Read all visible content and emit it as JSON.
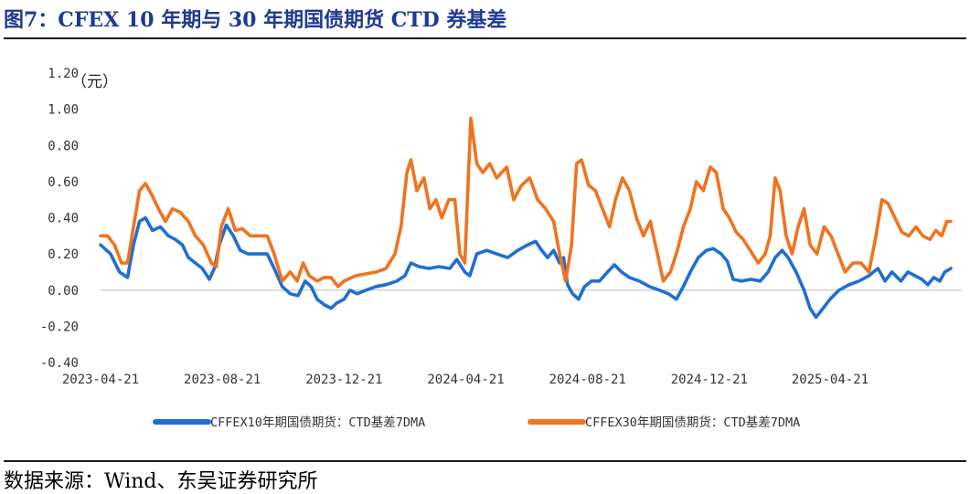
{
  "figure": {
    "title": "图7：CFEX 10 年期与 30 年期国债期货 CTD 券基差",
    "source": "数据来源：Wind、东吴证券研究所"
  },
  "chart_data": {
    "type": "line",
    "unit_label": "（元）",
    "ylim": [
      -0.4,
      1.2
    ],
    "yticks": [
      "1.20",
      "1.00",
      "0.80",
      "0.60",
      "0.40",
      "0.20",
      "0.00",
      "-0.20",
      "-0.40"
    ],
    "xlim": [
      "2023-04-21",
      "2025-08-31"
    ],
    "xtick_labels": [
      "2023-04-21",
      "2023-08-21",
      "2023-12-21",
      "2024-04-21",
      "2024-08-21",
      "2024-12-21",
      "2025-04-21"
    ],
    "grid": false,
    "legend_position": "bottom",
    "series": [
      {
        "name": "CFFEX10年期国债期货：CTD基差7DMA",
        "color": "#1f6fd0",
        "points": [
          [
            "2023-04-21",
            0.25
          ],
          [
            "2023-05-01",
            0.2
          ],
          [
            "2023-05-10",
            0.1
          ],
          [
            "2023-05-18",
            0.07
          ],
          [
            "2023-05-24",
            0.25
          ],
          [
            "2023-05-30",
            0.38
          ],
          [
            "2023-06-05",
            0.4
          ],
          [
            "2023-06-12",
            0.33
          ],
          [
            "2023-06-20",
            0.35
          ],
          [
            "2023-06-28",
            0.3
          ],
          [
            "2023-07-05",
            0.28
          ],
          [
            "2023-07-12",
            0.25
          ],
          [
            "2023-07-18",
            0.18
          ],
          [
            "2023-07-25",
            0.15
          ],
          [
            "2023-08-01",
            0.12
          ],
          [
            "2023-08-08",
            0.06
          ],
          [
            "2023-08-13",
            0.12
          ],
          [
            "2023-08-18",
            0.25
          ],
          [
            "2023-08-25",
            0.36
          ],
          [
            "2023-09-01",
            0.3
          ],
          [
            "2023-09-08",
            0.22
          ],
          [
            "2023-09-16",
            0.2
          ],
          [
            "2023-09-25",
            0.2
          ],
          [
            "2023-10-05",
            0.2
          ],
          [
            "2023-10-12",
            0.12
          ],
          [
            "2023-10-20",
            0.02
          ],
          [
            "2023-10-28",
            -0.02
          ],
          [
            "2023-11-05",
            -0.03
          ],
          [
            "2023-11-12",
            0.05
          ],
          [
            "2023-11-18",
            0.02
          ],
          [
            "2023-11-24",
            -0.05
          ],
          [
            "2023-12-01",
            -0.08
          ],
          [
            "2023-12-08",
            -0.1
          ],
          [
            "2023-12-14",
            -0.07
          ],
          [
            "2023-12-21",
            -0.05
          ],
          [
            "2023-12-27",
            0.0
          ],
          [
            "2024-01-03",
            -0.02
          ],
          [
            "2024-01-12",
            0.0
          ],
          [
            "2024-01-22",
            0.02
          ],
          [
            "2024-02-01",
            0.03
          ],
          [
            "2024-02-12",
            0.05
          ],
          [
            "2024-02-20",
            0.08
          ],
          [
            "2024-02-26",
            0.15
          ],
          [
            "2024-03-05",
            0.13
          ],
          [
            "2024-03-15",
            0.12
          ],
          [
            "2024-03-25",
            0.13
          ],
          [
            "2024-04-05",
            0.12
          ],
          [
            "2024-04-12",
            0.17
          ],
          [
            "2024-04-20",
            0.1
          ],
          [
            "2024-04-25",
            0.08
          ],
          [
            "2024-05-02",
            0.2
          ],
          [
            "2024-05-12",
            0.22
          ],
          [
            "2024-05-22",
            0.2
          ],
          [
            "2024-06-02",
            0.18
          ],
          [
            "2024-06-12",
            0.22
          ],
          [
            "2024-06-22",
            0.25
          ],
          [
            "2024-06-30",
            0.27
          ],
          [
            "2024-07-06",
            0.22
          ],
          [
            "2024-07-12",
            0.18
          ],
          [
            "2024-07-18",
            0.22
          ],
          [
            "2024-07-24",
            0.15
          ],
          [
            "2024-07-28",
            0.18
          ],
          [
            "2024-08-01",
            0.03
          ],
          [
            "2024-08-06",
            -0.02
          ],
          [
            "2024-08-12",
            -0.05
          ],
          [
            "2024-08-18",
            0.02
          ],
          [
            "2024-08-25",
            0.05
          ],
          [
            "2024-09-02",
            0.05
          ],
          [
            "2024-09-10",
            0.1
          ],
          [
            "2024-09-17",
            0.14
          ],
          [
            "2024-09-24",
            0.1
          ],
          [
            "2024-10-02",
            0.07
          ],
          [
            "2024-10-12",
            0.05
          ],
          [
            "2024-10-22",
            0.02
          ],
          [
            "2024-11-01",
            0.0
          ],
          [
            "2024-11-10",
            -0.02
          ],
          [
            "2024-11-18",
            -0.05
          ],
          [
            "2024-11-25",
            0.02
          ],
          [
            "2024-12-02",
            0.1
          ],
          [
            "2024-12-10",
            0.18
          ],
          [
            "2024-12-18",
            0.22
          ],
          [
            "2024-12-25",
            0.23
          ],
          [
            "2025-01-02",
            0.2
          ],
          [
            "2025-01-08",
            0.16
          ],
          [
            "2025-01-14",
            0.06
          ],
          [
            "2025-01-22",
            0.05
          ],
          [
            "2025-02-01",
            0.06
          ],
          [
            "2025-02-10",
            0.05
          ],
          [
            "2025-02-18",
            0.1
          ],
          [
            "2025-02-25",
            0.18
          ],
          [
            "2025-03-04",
            0.22
          ],
          [
            "2025-03-10",
            0.18
          ],
          [
            "2025-03-18",
            0.1
          ],
          [
            "2025-03-26",
            0.0
          ],
          [
            "2025-04-01",
            -0.1
          ],
          [
            "2025-04-07",
            -0.15
          ],
          [
            "2025-04-14",
            -0.1
          ],
          [
            "2025-04-21",
            -0.05
          ],
          [
            "2025-04-30",
            0.0
          ],
          [
            "2025-05-10",
            0.03
          ],
          [
            "2025-05-20",
            0.05
          ],
          [
            "2025-05-30",
            0.08
          ],
          [
            "2025-06-08",
            0.12
          ],
          [
            "2025-06-15",
            0.05
          ],
          [
            "2025-06-22",
            0.1
          ],
          [
            "2025-07-01",
            0.05
          ],
          [
            "2025-07-08",
            0.1
          ],
          [
            "2025-07-15",
            0.08
          ],
          [
            "2025-07-22",
            0.06
          ],
          [
            "2025-07-28",
            0.03
          ],
          [
            "2025-08-03",
            0.07
          ],
          [
            "2025-08-09",
            0.05
          ],
          [
            "2025-08-14",
            0.1
          ],
          [
            "2025-08-20",
            0.12
          ]
        ]
      },
      {
        "name": "CFFEX30年期国债期货：CTD基差7DMA",
        "color": "#f0731e",
        "points": [
          [
            "2023-04-21",
            0.3
          ],
          [
            "2023-04-28",
            0.3
          ],
          [
            "2023-05-05",
            0.25
          ],
          [
            "2023-05-12",
            0.15
          ],
          [
            "2023-05-18",
            0.15
          ],
          [
            "2023-05-24",
            0.35
          ],
          [
            "2023-05-30",
            0.55
          ],
          [
            "2023-06-05",
            0.59
          ],
          [
            "2023-06-12",
            0.52
          ],
          [
            "2023-06-18",
            0.45
          ],
          [
            "2023-06-25",
            0.38
          ],
          [
            "2023-07-02",
            0.45
          ],
          [
            "2023-07-10",
            0.43
          ],
          [
            "2023-07-18",
            0.38
          ],
          [
            "2023-07-25",
            0.3
          ],
          [
            "2023-08-02",
            0.25
          ],
          [
            "2023-08-10",
            0.15
          ],
          [
            "2023-08-15",
            0.13
          ],
          [
            "2023-08-20",
            0.35
          ],
          [
            "2023-08-27",
            0.45
          ],
          [
            "2023-09-03",
            0.33
          ],
          [
            "2023-09-10",
            0.34
          ],
          [
            "2023-09-18",
            0.3
          ],
          [
            "2023-09-26",
            0.3
          ],
          [
            "2023-10-05",
            0.3
          ],
          [
            "2023-10-12",
            0.2
          ],
          [
            "2023-10-20",
            0.05
          ],
          [
            "2023-10-28",
            0.1
          ],
          [
            "2023-11-04",
            0.05
          ],
          [
            "2023-11-10",
            0.15
          ],
          [
            "2023-11-16",
            0.08
          ],
          [
            "2023-11-24",
            0.05
          ],
          [
            "2023-12-01",
            0.07
          ],
          [
            "2023-12-08",
            0.07
          ],
          [
            "2023-12-15",
            0.02
          ],
          [
            "2023-12-21",
            0.05
          ],
          [
            "2024-01-02",
            0.08
          ],
          [
            "2024-01-12",
            0.09
          ],
          [
            "2024-01-22",
            0.1
          ],
          [
            "2024-02-01",
            0.12
          ],
          [
            "2024-02-10",
            0.2
          ],
          [
            "2024-02-16",
            0.35
          ],
          [
            "2024-02-22",
            0.65
          ],
          [
            "2024-02-26",
            0.72
          ],
          [
            "2024-03-03",
            0.55
          ],
          [
            "2024-03-10",
            0.62
          ],
          [
            "2024-03-16",
            0.45
          ],
          [
            "2024-03-22",
            0.5
          ],
          [
            "2024-03-28",
            0.4
          ],
          [
            "2024-04-04",
            0.5
          ],
          [
            "2024-04-10",
            0.5
          ],
          [
            "2024-04-15",
            0.2
          ],
          [
            "2024-04-20",
            0.15
          ],
          [
            "2024-04-26",
            0.95
          ],
          [
            "2024-05-02",
            0.7
          ],
          [
            "2024-05-08",
            0.65
          ],
          [
            "2024-05-15",
            0.7
          ],
          [
            "2024-05-22",
            0.62
          ],
          [
            "2024-06-01",
            0.68
          ],
          [
            "2024-06-08",
            0.5
          ],
          [
            "2024-06-16",
            0.58
          ],
          [
            "2024-06-24",
            0.62
          ],
          [
            "2024-07-02",
            0.5
          ],
          [
            "2024-07-10",
            0.45
          ],
          [
            "2024-07-18",
            0.38
          ],
          [
            "2024-07-24",
            0.2
          ],
          [
            "2024-07-30",
            0.05
          ],
          [
            "2024-08-05",
            0.25
          ],
          [
            "2024-08-10",
            0.7
          ],
          [
            "2024-08-15",
            0.72
          ],
          [
            "2024-08-22",
            0.58
          ],
          [
            "2024-08-29",
            0.55
          ],
          [
            "2024-09-05",
            0.45
          ],
          [
            "2024-09-12",
            0.35
          ],
          [
            "2024-09-18",
            0.5
          ],
          [
            "2024-09-25",
            0.62
          ],
          [
            "2024-10-02",
            0.55
          ],
          [
            "2024-10-09",
            0.4
          ],
          [
            "2024-10-16",
            0.3
          ],
          [
            "2024-10-23",
            0.38
          ],
          [
            "2024-10-30",
            0.2
          ],
          [
            "2024-11-05",
            0.05
          ],
          [
            "2024-11-12",
            0.1
          ],
          [
            "2024-11-19",
            0.22
          ],
          [
            "2024-11-25",
            0.35
          ],
          [
            "2024-12-02",
            0.45
          ],
          [
            "2024-12-08",
            0.6
          ],
          [
            "2024-12-15",
            0.55
          ],
          [
            "2024-12-22",
            0.68
          ],
          [
            "2024-12-28",
            0.65
          ],
          [
            "2025-01-04",
            0.45
          ],
          [
            "2025-01-10",
            0.4
          ],
          [
            "2025-01-17",
            0.32
          ],
          [
            "2025-01-24",
            0.28
          ],
          [
            "2025-01-31",
            0.22
          ],
          [
            "2025-02-08",
            0.15
          ],
          [
            "2025-02-15",
            0.2
          ],
          [
            "2025-02-20",
            0.3
          ],
          [
            "2025-02-25",
            0.62
          ],
          [
            "2025-03-02",
            0.55
          ],
          [
            "2025-03-08",
            0.3
          ],
          [
            "2025-03-14",
            0.2
          ],
          [
            "2025-03-20",
            0.35
          ],
          [
            "2025-03-26",
            0.45
          ],
          [
            "2025-04-01",
            0.25
          ],
          [
            "2025-04-08",
            0.2
          ],
          [
            "2025-04-15",
            0.35
          ],
          [
            "2025-04-22",
            0.3
          ],
          [
            "2025-04-29",
            0.2
          ],
          [
            "2025-05-06",
            0.1
          ],
          [
            "2025-05-14",
            0.15
          ],
          [
            "2025-05-22",
            0.15
          ],
          [
            "2025-05-30",
            0.1
          ],
          [
            "2025-06-06",
            0.3
          ],
          [
            "2025-06-12",
            0.5
          ],
          [
            "2025-06-18",
            0.48
          ],
          [
            "2025-06-25",
            0.4
          ],
          [
            "2025-07-02",
            0.32
          ],
          [
            "2025-07-09",
            0.3
          ],
          [
            "2025-07-16",
            0.35
          ],
          [
            "2025-07-23",
            0.3
          ],
          [
            "2025-07-30",
            0.28
          ],
          [
            "2025-08-05",
            0.33
          ],
          [
            "2025-08-11",
            0.3
          ],
          [
            "2025-08-16",
            0.38
          ],
          [
            "2025-08-20",
            0.38
          ]
        ]
      }
    ]
  }
}
